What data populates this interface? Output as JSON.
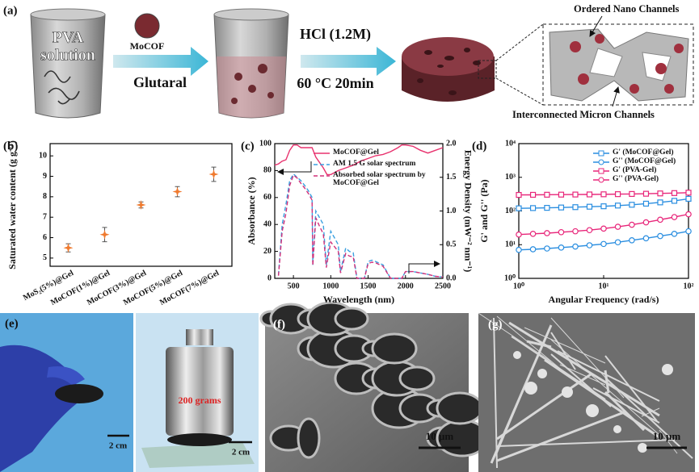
{
  "schematic": {
    "label": "(a)",
    "beaker_label": [
      "PVA",
      "solution"
    ],
    "additive": "MoCOF",
    "crosslinker": "Glutaral",
    "acid": "HCl (1.2M)",
    "condition": "60 °C  20min",
    "callout_top": "Ordered Nano Channels",
    "callout_bottom": "Interconnected Micron Channels"
  },
  "chart_data": [
    {
      "type": "scatter",
      "label": "(b)",
      "y_label": "Saturated water content (g g⁻¹)",
      "categories": [
        "MoS₂(5%)@Gel",
        "MoCOF(1%)@Gel",
        "MoCOF(3%)@Gel",
        "MoCOF(5%)@Gel",
        "MoCOF(7%)@Gel"
      ],
      "values": [
        5.5,
        6.15,
        7.6,
        8.25,
        9.1
      ],
      "errors": [
        0.2,
        0.35,
        0.15,
        0.25,
        0.35
      ],
      "color": "#f07a2e",
      "error_color": "#555555",
      "ylim": [
        4.6,
        10.6
      ],
      "yticks": [
        5,
        6,
        7,
        8,
        9,
        10
      ]
    },
    {
      "type": "line",
      "label": "(c)",
      "x_label": "Wavelength (nm)",
      "y_label": "Absorbance (%)",
      "y2_label": "Energy Density (mW⁻² nm⁻¹)",
      "xlim": [
        250,
        2500
      ],
      "xticks": [
        500,
        1000,
        1500,
        2000,
        2500
      ],
      "ylim": [
        0,
        100
      ],
      "yticks": [
        0,
        20,
        40,
        60,
        80,
        100
      ],
      "y2lim": [
        0,
        2
      ],
      "y2ticks": [
        {
          "value": 0,
          "label": "0.0"
        },
        {
          "value": 0.5,
          "label": "0.5"
        },
        {
          "value": 1,
          "label": "1.0"
        },
        {
          "value": 1.5,
          "label": "1.5"
        },
        {
          "value": 2,
          "label": "2.0"
        }
      ],
      "legend": "upper left",
      "series": [
        {
          "name": "MoCOF@Gel",
          "color": "#e8326e",
          "style": "solid",
          "x": [
            250,
            300,
            350,
            400,
            450,
            500,
            550,
            600,
            650,
            700,
            750,
            800,
            900,
            950,
            1000,
            1100,
            1200,
            1300,
            1400,
            1500,
            1600,
            1700,
            1800,
            1900,
            1950,
            2000,
            2100,
            2200,
            2300,
            2400,
            2500
          ],
          "values": [
            84,
            85,
            87,
            88,
            95,
            99,
            99,
            97,
            97,
            97,
            97,
            90,
            82,
            77,
            77,
            80,
            82,
            84,
            87,
            89,
            91,
            92,
            94,
            97,
            99,
            99,
            98,
            95,
            93,
            95,
            97
          ]
        },
        {
          "name": "AM 1.5 G solar spectrum",
          "color": "#3aa0e0",
          "style": "dashed",
          "axis": "y2",
          "x": [
            300,
            350,
            400,
            450,
            500,
            550,
            600,
            650,
            700,
            750,
            760,
            800,
            850,
            900,
            940,
            1000,
            1050,
            1100,
            1130,
            1200,
            1250,
            1300,
            1350,
            1400,
            1450,
            1500,
            1550,
            1600,
            1700,
            1800,
            1850,
            1900,
            1950,
            2000,
            2100,
            2200,
            2300,
            2400,
            2500
          ],
          "values": [
            0.05,
            0.8,
            1.1,
            1.45,
            1.55,
            1.5,
            1.45,
            1.38,
            1.3,
            1.2,
            0.2,
            1.0,
            0.9,
            0.8,
            0.2,
            0.7,
            0.6,
            0.5,
            0.1,
            0.45,
            0.4,
            0.38,
            0,
            0,
            0,
            0.25,
            0.27,
            0.25,
            0.2,
            0,
            0,
            0,
            0,
            0.1,
            0.1,
            0.08,
            0.06,
            0.03,
            0.02
          ]
        },
        {
          "name": "Absorbed solar spectrum by MoCOF@Gel",
          "color": "#d0307a",
          "style": "dashed",
          "axis": "y2",
          "x": [
            300,
            350,
            400,
            450,
            500,
            550,
            600,
            650,
            700,
            750,
            760,
            800,
            850,
            900,
            940,
            1000,
            1050,
            1100,
            1130,
            1200,
            1250,
            1300,
            1350,
            1400,
            1450,
            1500,
            1550,
            1600,
            1700,
            1800,
            1850,
            1900,
            1950,
            2000,
            2100,
            2200,
            2300,
            2400,
            2500
          ],
          "values": [
            0.04,
            0.7,
            0.97,
            1.38,
            1.53,
            1.49,
            1.41,
            1.34,
            1.26,
            1.16,
            0.19,
            0.9,
            0.77,
            0.66,
            0.16,
            0.54,
            0.47,
            0.4,
            0.08,
            0.37,
            0.33,
            0.32,
            0,
            0,
            0,
            0.22,
            0.24,
            0.23,
            0.18,
            0,
            0,
            0,
            0,
            0.1,
            0.1,
            0.08,
            0.06,
            0.03,
            0.02
          ]
        }
      ]
    },
    {
      "type": "line",
      "label": "(d)",
      "x_label": "Angular Frequency (rad/s)",
      "y_label": "G' and G'' (Pa)",
      "log_x": true,
      "log_y": true,
      "legend": "upper right",
      "xlim": [
        1,
        100
      ],
      "xticks": [
        {
          "value": 1,
          "label": "10⁰"
        },
        {
          "value": 10,
          "label": "10¹"
        },
        {
          "value": 100,
          "label": "10²"
        }
      ],
      "ylim": [
        1,
        10000
      ],
      "yticks": [
        {
          "value": 1,
          "label": "10⁰"
        },
        {
          "value": 10,
          "label": "10¹"
        },
        {
          "value": 100,
          "label": "10²"
        },
        {
          "value": 1000,
          "label": "10³"
        },
        {
          "value": 10000,
          "label": "10⁴"
        }
      ],
      "x": [
        1,
        1.47,
        2.15,
        3.16,
        4.64,
        6.81,
        10,
        14.7,
        21.5,
        31.6,
        46.4,
        68.1,
        100
      ],
      "series": [
        {
          "name": "G'  (MoCOF@Gel)",
          "color": "#2a8ee0",
          "marker": "square",
          "values": [
            120,
            122,
            124,
            127,
            130,
            134,
            138,
            145,
            153,
            165,
            180,
            200,
            230
          ]
        },
        {
          "name": "G'' (MoCOF@Gel)",
          "color": "#2a8ee0",
          "marker": "circle",
          "values": [
            7,
            7.3,
            7.7,
            8.2,
            8.8,
            9.6,
            10.5,
            11.8,
            13.5,
            15.5,
            18,
            21,
            25
          ]
        },
        {
          "name": "G'  (PVA-Gel)",
          "color": "#e8267a",
          "marker": "square",
          "values": [
            300,
            302,
            304,
            306,
            308,
            310,
            313,
            316,
            320,
            325,
            332,
            340,
            350
          ]
        },
        {
          "name": "G'' (PVA-Gel)",
          "color": "#e8267a",
          "marker": "circle",
          "values": [
            20,
            21,
            22,
            23.5,
            25,
            27,
            30,
            34,
            39,
            46,
            55,
            66,
            80
          ]
        }
      ]
    }
  ],
  "photos": {
    "e": {
      "label": "(e)",
      "scale_left": "2 cm",
      "weight": "200 grams",
      "scale_right": "2 cm"
    },
    "f": {
      "label": "(f)",
      "scale": "10 μm"
    },
    "g": {
      "label": "(g)",
      "scale": "10 μm"
    }
  }
}
